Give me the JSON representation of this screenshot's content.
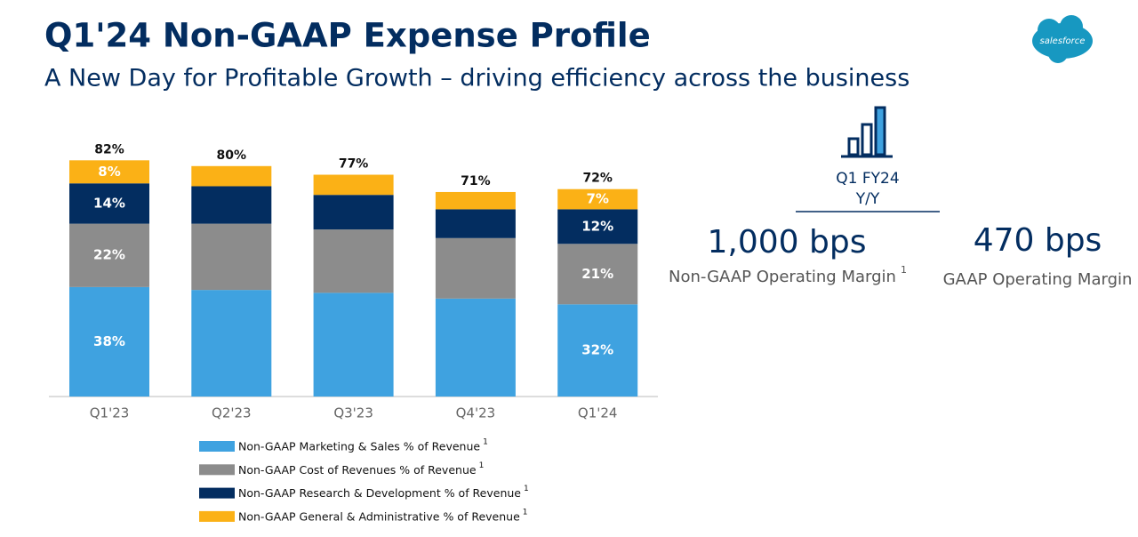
{
  "header": {
    "title": "Q1'24 Non-GAAP Expense Profile",
    "subtitle": "A New Day for Profitable Growth – driving efficiency across the business"
  },
  "logo": "salesforce",
  "kpi": {
    "period": "Q1 FY24",
    "basis": "Y/Y",
    "items": [
      {
        "value": "1,000 bps",
        "label": "Non-GAAP Operating Margin",
        "note": "1"
      },
      {
        "value": "470 bps",
        "label": "GAAP Operating Margin"
      }
    ]
  },
  "chart_data": {
    "type": "stacked-bar",
    "categories": [
      "Q1'23",
      "Q2'23",
      "Q3'23",
      "Q4'23",
      "Q1'24"
    ],
    "series": [
      {
        "name": "Non-GAAP Marketing & Sales % of Revenue",
        "color": "#3fa2e0",
        "values": [
          38,
          37,
          36,
          34,
          32
        ],
        "value_labels": [
          "38%",
          null,
          null,
          null,
          "32%"
        ]
      },
      {
        "name": "Non-GAAP Cost of Revenues % of Revenue",
        "color": "#8c8c8c",
        "values": [
          22,
          23,
          22,
          21,
          21
        ],
        "value_labels": [
          "22%",
          null,
          null,
          null,
          "21%"
        ]
      },
      {
        "name": "Non-GAAP Research & Development % of Revenue",
        "color": "#032d60",
        "values": [
          14,
          13,
          12,
          10,
          12
        ],
        "value_labels": [
          "14%",
          null,
          null,
          null,
          "12%"
        ]
      },
      {
        "name": "Non-GAAP General & Administrative % of Revenue",
        "color": "#fbb116",
        "values": [
          8,
          7,
          7,
          6,
          7
        ],
        "value_labels": [
          "8%",
          null,
          null,
          null,
          "7%"
        ]
      }
    ],
    "totals": [
      82,
      80,
      77,
      71,
      72
    ],
    "total_labels": [
      "82%",
      "80%",
      "77%",
      "71%",
      "72%"
    ],
    "legend_note": "1"
  }
}
